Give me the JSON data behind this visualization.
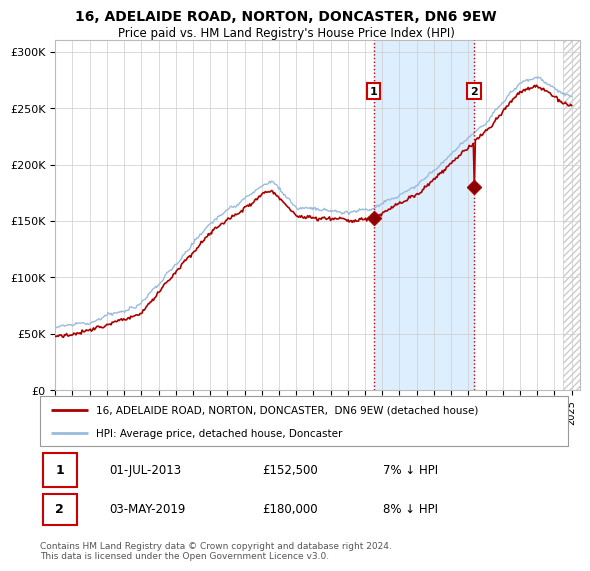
{
  "title": "16, ADELAIDE ROAD, NORTON, DONCASTER, DN6 9EW",
  "subtitle": "Price paid vs. HM Land Registry's House Price Index (HPI)",
  "ylabel_ticks": [
    "£0",
    "£50K",
    "£100K",
    "£150K",
    "£200K",
    "£250K",
    "£300K"
  ],
  "ytick_values": [
    0,
    50000,
    100000,
    150000,
    200000,
    250000,
    300000
  ],
  "ylim": [
    0,
    310000
  ],
  "xlim_start": 1995.0,
  "xlim_end": 2025.5,
  "hatch_start": 2024.5,
  "marker1_x": 2013.5,
  "marker1_y": 152500,
  "marker1_label": "1",
  "marker1_date": "01-JUL-2013",
  "marker1_price": "£152,500",
  "marker1_hpi": "7% ↓ HPI",
  "marker2_x": 2019.33,
  "marker2_y": 180000,
  "marker2_label": "2",
  "marker2_date": "03-MAY-2019",
  "marker2_price": "£180,000",
  "marker2_hpi": "8% ↓ HPI",
  "line1_color": "#aa0000",
  "line2_color": "#99bbdd",
  "shaded_color": "#ddeeff",
  "vline_color": "#cc0000",
  "vline_style": ":",
  "legend1_label": "16, ADELAIDE ROAD, NORTON, DONCASTER,  DN6 9EW (detached house)",
  "legend2_label": "HPI: Average price, detached house, Doncaster",
  "footer": "Contains HM Land Registry data © Crown copyright and database right 2024.\nThis data is licensed under the Open Government Licence v3.0.",
  "background_color": "#ffffff",
  "grid_color": "#cccccc"
}
